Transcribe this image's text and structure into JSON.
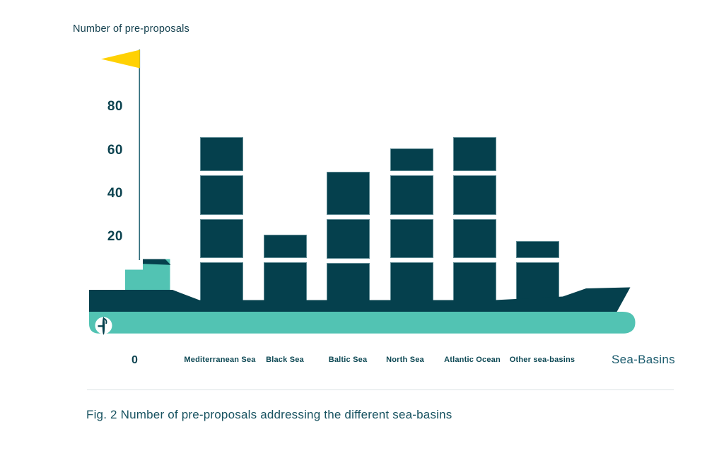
{
  "chart_data": {
    "type": "bar",
    "title": "Fig. 2 Number of pre-proposals addressing the different sea-basins",
    "ylabel": "Number of pre-proposals",
    "xlabel": "Sea-Basins",
    "origin_label": "0",
    "categories": [
      "Mediterranean Sea",
      "Black Sea",
      "Baltic Sea",
      "North Sea",
      "Atlantic Ocean",
      "Other sea-basins"
    ],
    "values": [
      66,
      21,
      50,
      61,
      66,
      18
    ],
    "yticks": [
      20,
      40,
      60,
      80
    ],
    "ylim": [
      0,
      90
    ],
    "grid": false,
    "legend": "none",
    "style_note": "bars drawn as stacked shipping containers on a container-ship illustration; y-axis is the ship mast with a yellow flag on top"
  },
  "caption": "Fig. 2 Number of pre-proposals addressing the different sea-basins",
  "icons": {
    "flag": "flag-icon",
    "propeller": "propeller-icon"
  },
  "colors": {
    "dark_teal": "#05404d",
    "light_teal": "#52c3b3",
    "flag_yellow": "#ffd103",
    "mast": "#2e6b7a",
    "text": "#13505e",
    "divider": "#dce2e5"
  }
}
